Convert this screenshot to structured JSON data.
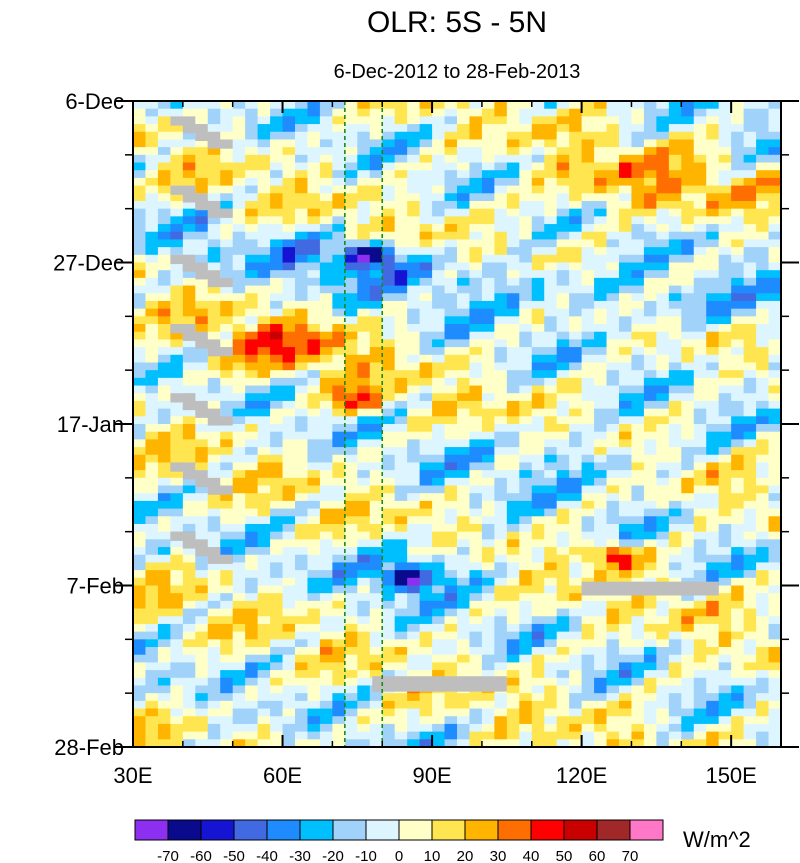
{
  "chart_data": {
    "type": "heatmap",
    "subtype": "hovmoller",
    "title": "OLR: 5S - 5N",
    "subtitle": "6-Dec-2012 to 28-Feb-2013",
    "xlabel": "",
    "ylabel": "",
    "x_range_deg_east": [
      30,
      160
    ],
    "y_range_days_since_6dec2012": [
      0,
      84
    ],
    "y_reversed": true,
    "x_ticks": [
      {
        "value": 30,
        "label": "30E"
      },
      {
        "value": 60,
        "label": "60E"
      },
      {
        "value": 90,
        "label": "90E"
      },
      {
        "value": 120,
        "label": "120E"
      },
      {
        "value": 150,
        "label": "150E"
      }
    ],
    "y_ticks": [
      {
        "value": 0,
        "label": "6-Dec"
      },
      {
        "value": 21,
        "label": "27-Dec"
      },
      {
        "value": 42,
        "label": "17-Jan"
      },
      {
        "value": 63,
        "label": "7-Feb"
      },
      {
        "value": 84,
        "label": "28-Feb"
      }
    ],
    "reference_lines_x": [
      72.5,
      80
    ],
    "reference_line_color": "#1a8a1a",
    "colorbar": {
      "units": "W/m^2",
      "levels": [
        -70,
        -60,
        -50,
        -40,
        -30,
        -20,
        -10,
        0,
        10,
        20,
        30,
        40,
        50,
        60,
        70
      ],
      "colors": [
        "#8c2ff0",
        "#0a0a8c",
        "#1414d2",
        "#4169e1",
        "#1e8cff",
        "#00bfff",
        "#a0d2fa",
        "#dcf5ff",
        "#ffffc8",
        "#ffe650",
        "#ffb400",
        "#ff6e00",
        "#ff0000",
        "#c80000",
        "#a02828",
        "#ff78c8"
      ]
    },
    "missing_color": "#bebebe",
    "features": [
      {
        "name": "convective minimum near 75-90E",
        "lon": 77,
        "day": 20,
        "value": -70
      },
      {
        "name": "convective minimum near 85E",
        "lon": 85,
        "day": 62,
        "value": -70
      },
      {
        "name": "warm anomaly",
        "lon": 75,
        "day": 39,
        "value": 50
      },
      {
        "name": "warm anomaly",
        "lon": 127,
        "day": 59,
        "value": 60
      }
    ]
  }
}
